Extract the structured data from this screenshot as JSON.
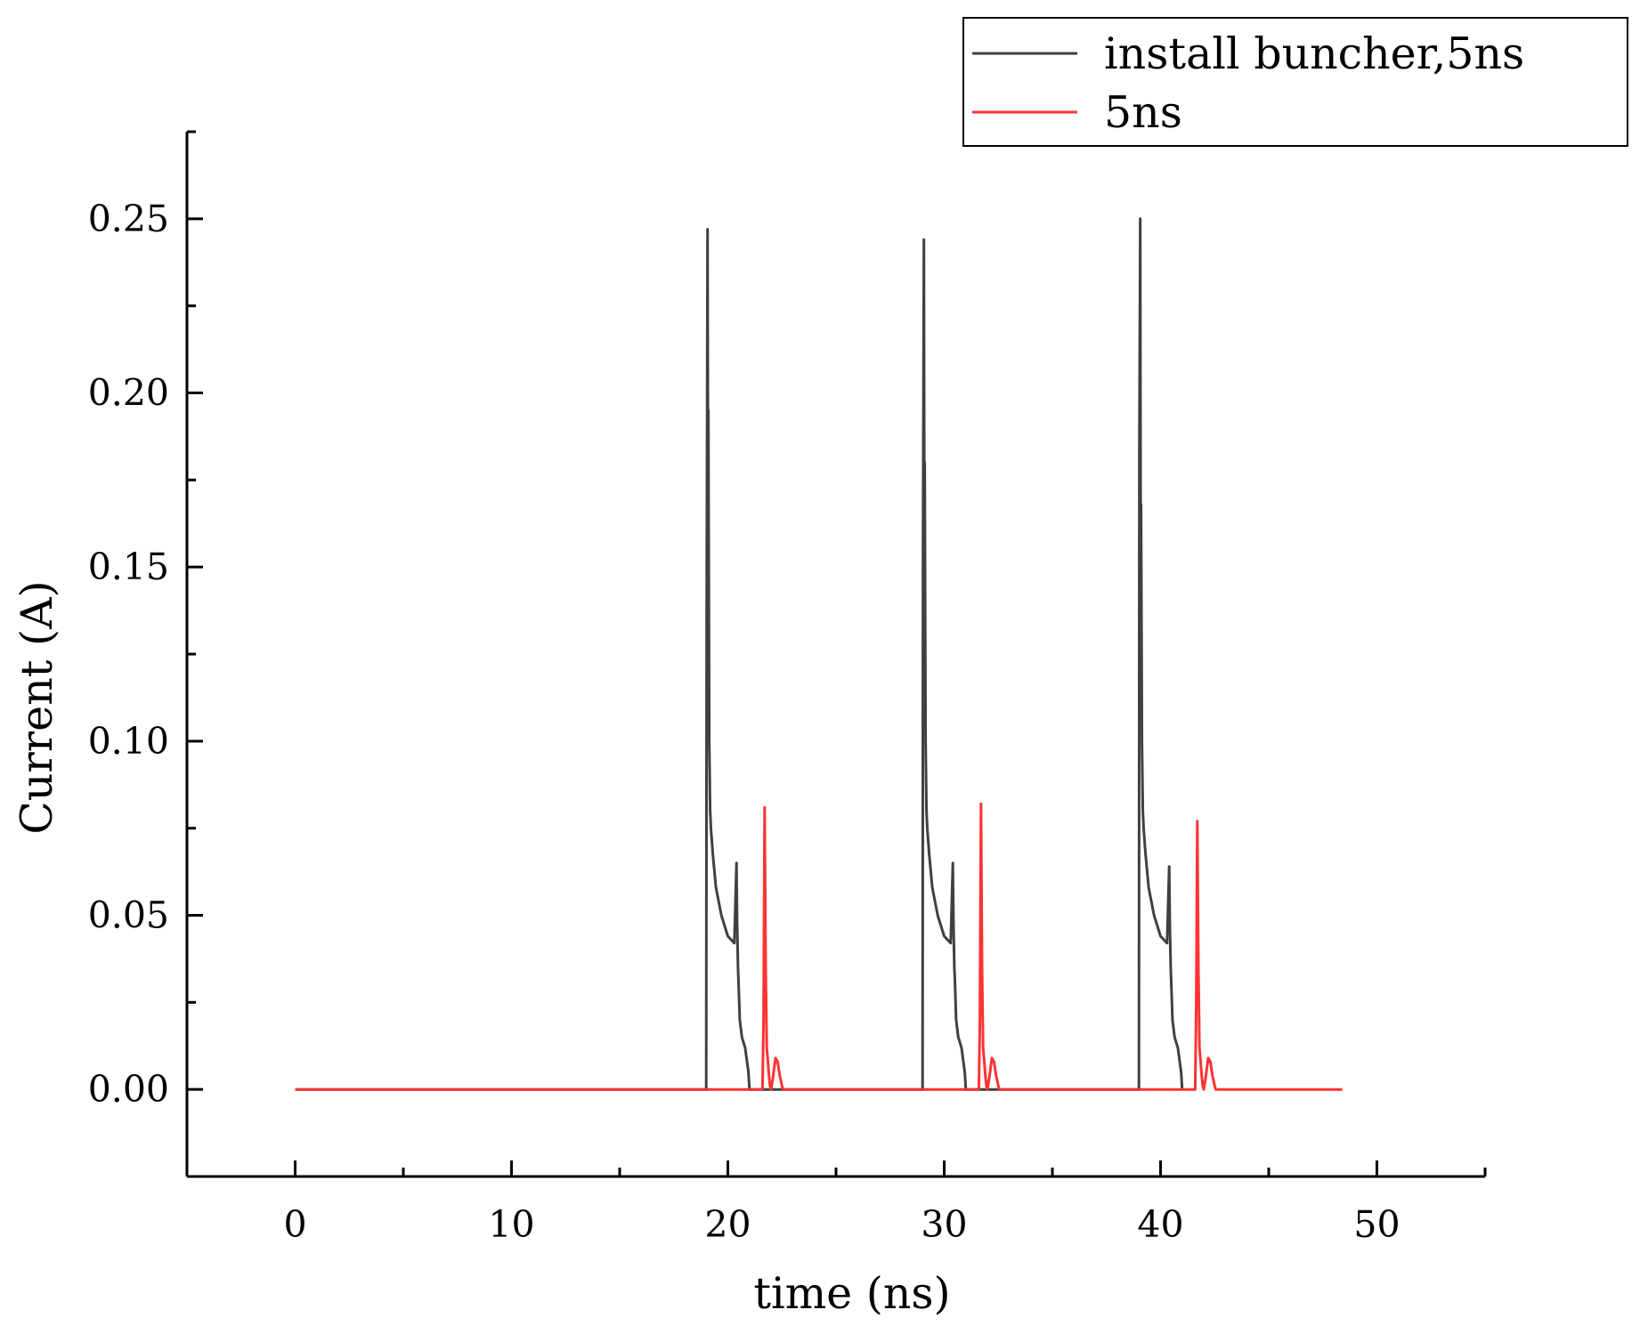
{
  "chart_data": {
    "type": "line",
    "title": "",
    "xlabel": "time (ns)",
    "ylabel": "Current (A)",
    "xlim": [
      -5,
      55
    ],
    "ylim": [
      -0.025,
      0.275
    ],
    "xticks": [
      0,
      10,
      20,
      30,
      40,
      50
    ],
    "xtick_labels": [
      "0",
      "10",
      "20",
      "30",
      "40",
      "50"
    ],
    "yticks": [
      0.0,
      0.05,
      0.1,
      0.15,
      0.2,
      0.25
    ],
    "ytick_labels": [
      "0.00",
      "0.05",
      "0.10",
      "0.15",
      "0.20",
      "0.25"
    ],
    "grid": false,
    "legend_position": "top-right",
    "series": [
      {
        "name": "install buncher,5ns",
        "color": "#404040",
        "x": [
          0,
          19.0,
          19.02,
          19.06,
          19.08,
          19.1,
          19.14,
          19.18,
          19.22,
          19.3,
          19.45,
          19.7,
          20.0,
          20.3,
          20.4,
          20.43,
          20.47,
          20.5,
          20.55,
          20.65,
          20.8,
          20.95,
          21.0,
          29.0,
          29.02,
          29.06,
          29.08,
          29.1,
          29.14,
          29.18,
          29.22,
          29.3,
          29.45,
          29.7,
          30.0,
          30.3,
          30.4,
          30.43,
          30.47,
          30.5,
          30.55,
          30.65,
          30.8,
          30.95,
          31.0,
          39.0,
          39.02,
          39.06,
          39.08,
          39.1,
          39.14,
          39.18,
          39.22,
          39.3,
          39.45,
          39.7,
          40.0,
          40.3,
          40.4,
          40.43,
          40.47,
          40.5,
          40.55,
          40.65,
          40.8,
          40.95,
          41.0
        ],
        "y": [
          0,
          0,
          0.135,
          0.247,
          0.19,
          0.195,
          0.1,
          0.08,
          0.075,
          0.068,
          0.058,
          0.05,
          0.044,
          0.042,
          0.065,
          0.048,
          0.035,
          0.03,
          0.02,
          0.015,
          0.012,
          0.005,
          0,
          0,
          0.155,
          0.244,
          0.18,
          0.18,
          0.1,
          0.08,
          0.075,
          0.068,
          0.058,
          0.05,
          0.044,
          0.042,
          0.065,
          0.048,
          0.035,
          0.03,
          0.02,
          0.015,
          0.012,
          0.005,
          0,
          0,
          0.185,
          0.25,
          0.168,
          0.168,
          0.1,
          0.08,
          0.075,
          0.068,
          0.058,
          0.05,
          0.044,
          0.042,
          0.064,
          0.048,
          0.035,
          0.03,
          0.02,
          0.015,
          0.012,
          0.005,
          0
        ]
      },
      {
        "name": "5ns",
        "color": "#ff3333",
        "x": [
          0,
          21.6,
          21.65,
          21.7,
          21.75,
          21.8,
          21.85,
          21.9,
          21.95,
          22.0,
          22.1,
          22.2,
          22.3,
          22.4,
          22.5,
          22.55,
          22.6,
          31.6,
          31.65,
          31.7,
          31.75,
          31.8,
          31.85,
          31.9,
          31.95,
          32.0,
          32.1,
          32.2,
          32.3,
          32.4,
          32.5,
          32.55,
          32.6,
          41.6,
          41.65,
          41.7,
          41.75,
          41.8,
          41.85,
          41.9,
          41.95,
          42.0,
          42.1,
          42.2,
          42.3,
          42.4,
          42.5,
          42.55,
          42.6,
          48.4
        ],
        "y": [
          0,
          0,
          0.02,
          0.081,
          0.035,
          0.012,
          0.008,
          0.004,
          0.001,
          0,
          0.004,
          0.009,
          0.008,
          0.004,
          0.001,
          0,
          0,
          0,
          0.02,
          0.082,
          0.035,
          0.012,
          0.008,
          0.004,
          0.001,
          0,
          0.004,
          0.009,
          0.008,
          0.004,
          0.001,
          0,
          0,
          0,
          0.025,
          0.077,
          0.035,
          0.012,
          0.008,
          0.004,
          0.001,
          0,
          0.004,
          0.009,
          0.008,
          0.004,
          0.001,
          0,
          0,
          0
        ]
      }
    ]
  }
}
